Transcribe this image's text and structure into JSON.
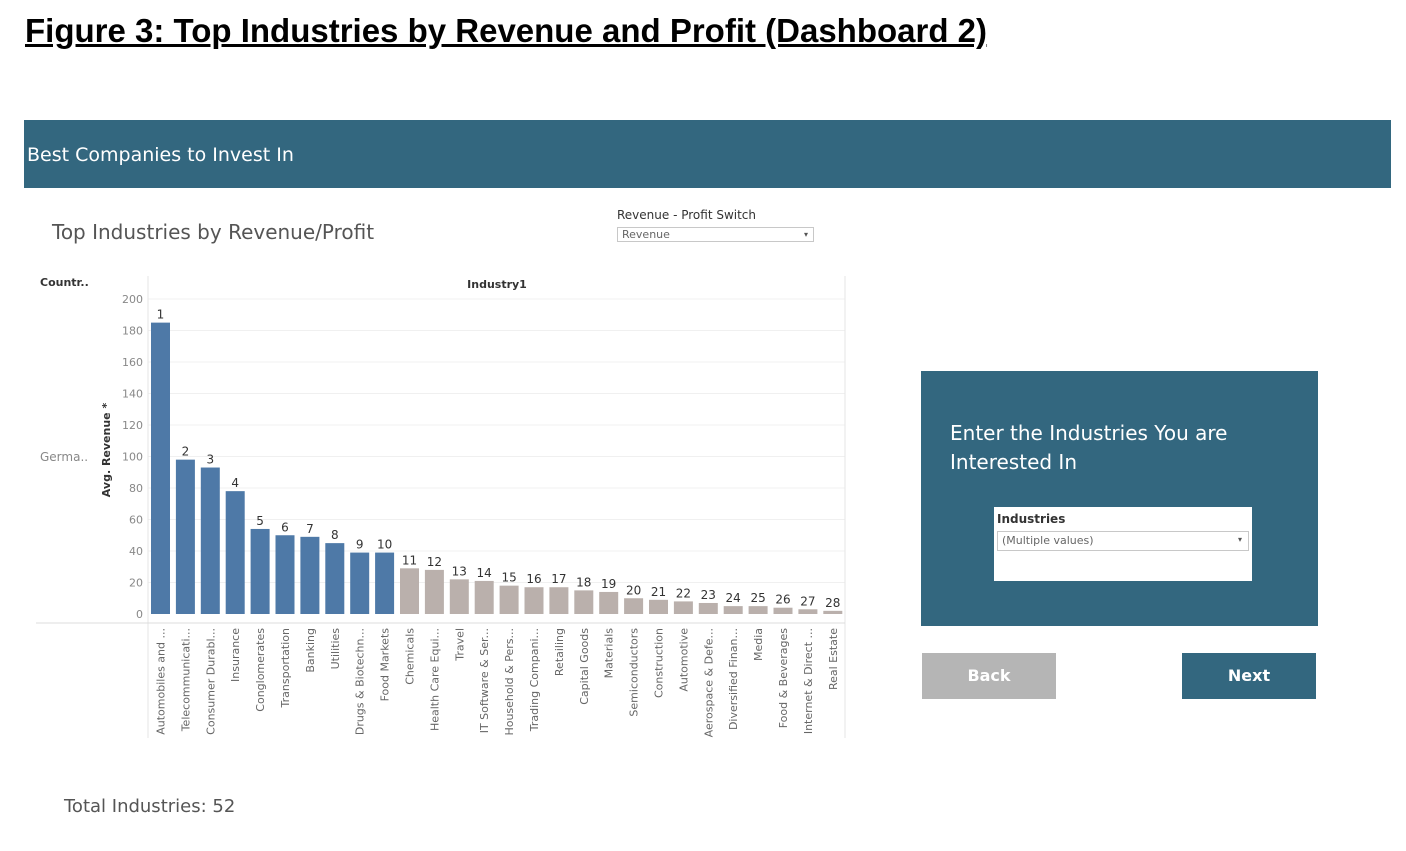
{
  "figure_title": "Figure 3: Top Industries by Revenue and Profit (Dashboard 2)",
  "dashboard": {
    "header_title": "Best Companies to Invest In",
    "sheet_title": "Top Industries by Revenue/Profit",
    "switch": {
      "label": "Revenue - Profit Switch",
      "value": "Revenue",
      "arrow_icon": "chevron-down-icon"
    },
    "panel": {
      "title": "Enter the Industries You are Interested In",
      "filter_label": "Industries",
      "filter_value": "(Multiple values)"
    },
    "buttons": {
      "back": "Back",
      "next": "Next"
    },
    "total_label": "Total Industries: 52"
  },
  "colors": {
    "header": "#33677f",
    "highlight_bar": "#4e79a7",
    "other_bar": "#bab0ac",
    "back_button": "#b5b5b5"
  },
  "chart_data": {
    "type": "bar",
    "column_header": "Industry1",
    "row_header": "Countr..",
    "row_label": "Germa..",
    "ylabel": "Avg. Revenue *",
    "ylim": [
      0,
      200
    ],
    "yticks": [
      0,
      20,
      40,
      60,
      80,
      100,
      120,
      140,
      160,
      180,
      200
    ],
    "grid": true,
    "highlight_count": 10,
    "categories": [
      "Automobiles and ...",
      "Telecommunicati...",
      "Consumer Durabl...",
      "Insurance",
      "Conglomerates",
      "Transportation",
      "Banking",
      "Utilities",
      "Drugs & Biotechn...",
      "Food Markets",
      "Chemicals",
      "Health Care Equi...",
      "Travel",
      "IT Software & Ser...",
      "Household & Pers...",
      "Trading Compani...",
      "Retailing",
      "Capital Goods",
      "Materials",
      "Semiconductors",
      "Construction",
      "Automotive",
      "Aerospace & Defe...",
      "Diversified Finan...",
      "Media",
      "Food & Beverages",
      "Internet & Direct ...",
      "Real Estate"
    ],
    "rank_labels": [
      "1",
      "2",
      "3",
      "4",
      "5",
      "6",
      "7",
      "8",
      "9",
      "10",
      "11",
      "12",
      "13",
      "14",
      "15",
      "16",
      "17",
      "18",
      "19",
      "20",
      "21",
      "22",
      "23",
      "24",
      "25",
      "26",
      "27",
      "28"
    ],
    "values": [
      185,
      98,
      93,
      78,
      54,
      50,
      49,
      45,
      39,
      39,
      29,
      28,
      22,
      21,
      18,
      17,
      17,
      15,
      14,
      10,
      9,
      8,
      7,
      5,
      5,
      4,
      3,
      2
    ]
  }
}
